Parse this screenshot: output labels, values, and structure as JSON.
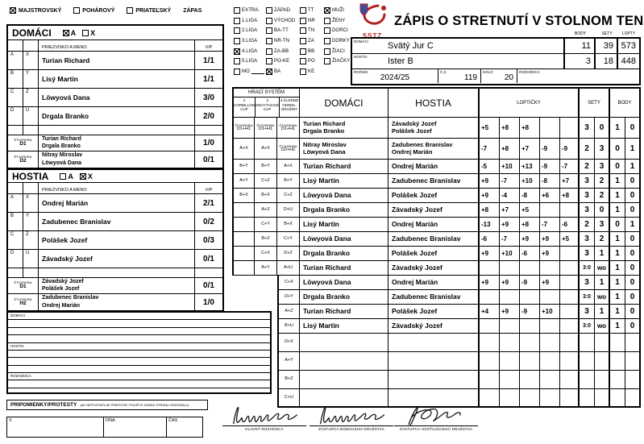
{
  "type_row": {
    "items": [
      {
        "label": "MAJSTROVSKÝ",
        "checked": true
      },
      {
        "label": "POHÁROVÝ",
        "checked": false
      },
      {
        "label": "PRIATEĽSKÝ",
        "checked": false
      }
    ],
    "suffix": "ZÁPAS"
  },
  "home_panel": {
    "title": "DOMÁCI",
    "opt_a": "A",
    "opt_x": "X",
    "a_checked": true,
    "x_checked": false,
    "name_header": "PRIEZVISKO A MENO",
    "vp_header": "V/P",
    "players": [
      {
        "l1": "A",
        "l2": "X",
        "name": "Turian Richard",
        "vp": "1/1"
      },
      {
        "l1": "B",
        "l2": "Y",
        "name": "Lisý Martin",
        "vp": "1/1"
      },
      {
        "l1": "C",
        "l2": "Z",
        "name": "Löwyová Dana",
        "vp": "3/0"
      },
      {
        "l1": "D",
        "l2": "U",
        "name": "Drgala Branko",
        "vp": "2/0"
      }
    ],
    "doubles": [
      {
        "cap": "ŠTVORHRA",
        "code": "D1",
        "line1": "Turian Richard",
        "line2": "Drgala Branko",
        "vp": "1/0"
      },
      {
        "cap": "ŠTVORHRA",
        "code": "D2",
        "line1": "Nitray Miroslav",
        "line2": "Löwyová Dana",
        "vp": "0/1"
      }
    ]
  },
  "away_panel": {
    "title": "HOSTIA",
    "opt_a": "A",
    "opt_x": "X",
    "a_checked": false,
    "x_checked": true,
    "name_header": "PRIEZVISKO A MENO",
    "vp_header": "V/P",
    "players": [
      {
        "l1": "A",
        "l2": "X",
        "name": "Ondrej Marián",
        "vp": "2/1"
      },
      {
        "l1": "B",
        "l2": "Y",
        "name": "Zadubenec Branislav",
        "vp": "0/2"
      },
      {
        "l1": "C",
        "l2": "Z",
        "name": "Polášek Jozef",
        "vp": "0/3"
      },
      {
        "l1": "D",
        "l2": "U",
        "name": "Závadský Jozef",
        "vp": "0/1"
      }
    ],
    "doubles": [
      {
        "cap": "ŠTVORHRA",
        "code": "D1",
        "line1": "Závadský Jozef",
        "line2": "Polášek Jozef",
        "vp": "0/1"
      },
      {
        "cap": "ŠTVORHRA",
        "code": "H2",
        "line1": "Zadubenec Branislav",
        "line2": "Ondrej Marián",
        "vp": "1/0"
      }
    ]
  },
  "league_grid": {
    "columns": [
      [
        {
          "label": "EXTRA.",
          "checked": false
        },
        {
          "label": "1.LIGA",
          "checked": false
        },
        {
          "label": "2.LIGA",
          "checked": false
        },
        {
          "label": "3.LIGA",
          "checked": false
        },
        {
          "label": "4.LIGA",
          "checked": true
        },
        {
          "label": "5.LIGA",
          "checked": false
        },
        {
          "label": "MO",
          "checked": false,
          "underline": true
        }
      ],
      [
        {
          "label": "ZÁPAD",
          "checked": false
        },
        {
          "label": "VÝCHOD",
          "checked": false
        },
        {
          "label": "BA-TT",
          "checked": false
        },
        {
          "label": "NR-TN",
          "checked": false
        },
        {
          "label": "ZA-BB",
          "checked": false
        },
        {
          "label": "PO-KE",
          "checked": false
        },
        {
          "label": "BA",
          "checked": true
        }
      ],
      [
        {
          "label": "TT",
          "checked": false
        },
        {
          "label": "NR",
          "checked": false
        },
        {
          "label": "TN",
          "checked": false
        },
        {
          "label": "ZA",
          "checked": false
        },
        {
          "label": "BB",
          "checked": false
        },
        {
          "label": "PO",
          "checked": false
        },
        {
          "label": "KE",
          "checked": false
        }
      ],
      [
        {
          "label": "MUŽI",
          "checked": true
        },
        {
          "label": "ŽENY",
          "checked": false
        },
        {
          "label": "DORCI",
          "checked": false
        },
        {
          "label": "DORKY",
          "checked": false
        },
        {
          "label": "ŽIACI",
          "checked": false
        },
        {
          "label": "ŽIAČKY",
          "checked": false
        }
      ]
    ]
  },
  "header": {
    "logo_text": "SSTZ",
    "title": "ZÁPIS O STRETNUTÍ V STOLNOM TENISE"
  },
  "teams": {
    "body_label": "BODY",
    "sety_label": "SETY",
    "lopty_label": "LOPTY",
    "rows": [
      {
        "label": "DOMÁCI",
        "name": "Svätý Jur C",
        "body": "11",
        "sety": "39",
        "lopty": "573"
      },
      {
        "label": "HOSTIA",
        "name": "Ister B",
        "body": "3",
        "sety": "18",
        "lopty": "448"
      }
    ],
    "rocnik_label": "ROČNÍK",
    "rocnik": "2024/25",
    "cz_label": "Č.Z.",
    "cz": "119",
    "kolo_label": "KOLO",
    "kolo": "20",
    "rozhodca_label": "ROZHODCA",
    "rozhodca": ""
  },
  "match_grid": {
    "system_title": "HRACÍ SYSTÉM",
    "system_cols": [
      "2\nCORBILLON\nCUP",
      "3\nSWAYTHLING\nCUP",
      "4-ČLENNÉ\nODDIEL.\nDRUŽINY"
    ],
    "home_label": "DOMÁCI",
    "away_label": "HOSTIA",
    "lopticky_label": "LOPTIČKY",
    "sety_label": "SETY",
    "body_label": "BODY",
    "rows": [
      {
        "s1c": "ŠTVORHRA",
        "s1": "D1+H1",
        "s2c": "ŠTVORHRA",
        "s2": "D1+H1",
        "s3c": "ŠTVORHRA",
        "s3": "D1+H1",
        "h1": "Turian Richard",
        "h2": "Drgala Branko",
        "a1": "Závadský Jozef",
        "a2": "Polášek Jozef",
        "sets": [
          "+5",
          "+8",
          "+8",
          "",
          ""
        ],
        "sety": [
          "3",
          "0"
        ],
        "body": [
          "1",
          "0"
        ]
      },
      {
        "s1": "A+X",
        "s2": "A+X",
        "s3c": "ŠTVORHRA",
        "s3": "D2+H2",
        "h1": "Nitray Miroslav",
        "h2": "Löwyová Dana",
        "a1": "Zadubenec Branislav",
        "a2": "Ondrej Marián",
        "sets": [
          "-7",
          "+8",
          "+7",
          "-9",
          "-9"
        ],
        "sety": [
          "2",
          "3"
        ],
        "body": [
          "0",
          "1"
        ]
      },
      {
        "s1": "B+Y",
        "s2": "B+Y",
        "s3": "A+X",
        "h1": "Turian Richard",
        "a1": "Ondrej Marián",
        "sets": [
          "-5",
          "+10",
          "+13",
          "-9",
          "-7"
        ],
        "sety": [
          "2",
          "3"
        ],
        "body": [
          "0",
          "1"
        ]
      },
      {
        "s1": "A+Y",
        "s2": "C+Z",
        "s3": "B+Y",
        "h1": "Lisý Martin",
        "a1": "Zadubenec Branislav",
        "sets": [
          "+9",
          "-7",
          "+10",
          "-8",
          "+7"
        ],
        "sety": [
          "3",
          "2"
        ],
        "body": [
          "1",
          "0"
        ]
      },
      {
        "s1": "B+X",
        "s2": "B+X",
        "s3": "C+Z",
        "h1": "Löwyová Dana",
        "a1": "Polášek Jozef",
        "sets": [
          "+9",
          "-4",
          "-8",
          "+6",
          "+8"
        ],
        "sety": [
          "3",
          "2"
        ],
        "body": [
          "1",
          "0"
        ]
      },
      {
        "s1": "",
        "s2": "A+Z",
        "s3": "D+U",
        "h1": "Drgala Branko",
        "a1": "Závadský Jozef",
        "sets": [
          "+8",
          "+7",
          "+5",
          "",
          ""
        ],
        "sety": [
          "3",
          "0"
        ],
        "body": [
          "1",
          "0"
        ]
      },
      {
        "s1": "",
        "s2": "C+Y",
        "s3": "B+X",
        "h1": "Lisý Martin",
        "a1": "Ondrej Marián",
        "sets": [
          "-13",
          "+9",
          "+8",
          "-7",
          "-6"
        ],
        "sety": [
          "2",
          "3"
        ],
        "body": [
          "0",
          "1"
        ]
      },
      {
        "s1": "",
        "s2": "B+Z",
        "s3": "C+Y",
        "h1": "Löwyová Dana",
        "a1": "Zadubenec Branislav",
        "sets": [
          "-6",
          "-7",
          "+9",
          "+9",
          "+5"
        ],
        "sety": [
          "3",
          "2"
        ],
        "body": [
          "1",
          "0"
        ]
      },
      {
        "s1": "",
        "s2": "C+X",
        "s3": "D+Z",
        "h1": "Drgala Branko",
        "a1": "Polášek Jozef",
        "sets": [
          "+9",
          "+10",
          "-6",
          "+9",
          ""
        ],
        "sety": [
          "3",
          "1"
        ],
        "body": [
          "1",
          "0"
        ]
      },
      {
        "s1": "",
        "s2": "A+Y",
        "s3": "A+U",
        "h1": "Turian Richard",
        "a1": "Závadský Jozef",
        "sets": [
          "",
          "",
          "",
          "",
          ""
        ],
        "sety": [
          "3:0",
          "wo"
        ],
        "body": [
          "1",
          "0"
        ]
      },
      {
        "narrow": true,
        "s3": "C+X",
        "h1": "Löwyová Dana",
        "a1": "Ondrej Marián",
        "sets": [
          "+9",
          "+9",
          "-9",
          "+9",
          ""
        ],
        "sety": [
          "3",
          "1"
        ],
        "body": [
          "1",
          "0"
        ]
      },
      {
        "narrow": true,
        "s3": "D+Y",
        "h1": "Drgala Branko",
        "a1": "Zadubenec Branislav",
        "sets": [
          "",
          "",
          "",
          "",
          ""
        ],
        "sety": [
          "3:0",
          "wo"
        ],
        "body": [
          "1",
          "0"
        ]
      },
      {
        "narrow": true,
        "s3": "A+Z",
        "h1": "Turian Richard",
        "a1": "Polášek Jozef",
        "sets": [
          "+4",
          "+9",
          "-9",
          "+10",
          ""
        ],
        "sety": [
          "3",
          "1"
        ],
        "body": [
          "1",
          "0"
        ]
      },
      {
        "narrow": true,
        "s3": "B+U",
        "h1": "Lisý Martin",
        "a1": "Závadský Jozef",
        "sets": [
          "",
          "",
          "",
          "",
          ""
        ],
        "sety": [
          "3:0",
          "wo"
        ],
        "body": [
          "1",
          "0"
        ]
      },
      {
        "narrow": true,
        "tall": true,
        "s3": "D+X",
        "h1": "",
        "a1": "",
        "sets": [
          "",
          "",
          "",
          "",
          ""
        ],
        "sety": [
          "",
          ""
        ],
        "body": [
          "",
          ""
        ]
      },
      {
        "narrow": true,
        "tall": true,
        "s3": "A+Y",
        "h1": "",
        "a1": "",
        "sets": [
          "",
          "",
          "",
          "",
          ""
        ],
        "sety": [
          "",
          ""
        ],
        "body": [
          "",
          ""
        ]
      },
      {
        "narrow": true,
        "tall": true,
        "s3": "B+Z",
        "h1": "",
        "a1": "",
        "sets": [
          "",
          "",
          "",
          "",
          ""
        ],
        "sety": [
          "",
          ""
        ],
        "body": [
          "",
          ""
        ]
      },
      {
        "narrow": true,
        "tall": true,
        "s3": "C+U",
        "h1": "",
        "a1": "",
        "sets": [
          "",
          "",
          "",
          "",
          ""
        ],
        "sety": [
          "",
          ""
        ],
        "body": [
          "",
          ""
        ]
      }
    ]
  },
  "notes": {
    "sections": [
      {
        "label": "DOMÁCI",
        "lines": 3
      },
      {
        "label": "HOSTIA",
        "lines": 3
      },
      {
        "label": "ROZHODCA",
        "lines": 2
      }
    ]
  },
  "protests": {
    "title": "PRIPOMIENKY/PROTESTY",
    "note": "(AK NEPOSTAČUJE PRIESTOR, POUŽITE ZADNÚ STRANU ORIGINÁLU)"
  },
  "place_row": {
    "v_label": "V",
    "dna_label": "DŇA",
    "cas_label": "ČAS"
  },
  "signatures": [
    {
      "label": "HLAVNÝ ROZHODCA"
    },
    {
      "label": "ZÁSTUPCA DOMÁCEHO DRUŽSTVA"
    },
    {
      "label": "ZÁSTUPCA HOSŤUJÚCEHO DRUŽSTVA"
    }
  ],
  "colors": {
    "accent_red": "#b22222",
    "ink": "#000000"
  }
}
